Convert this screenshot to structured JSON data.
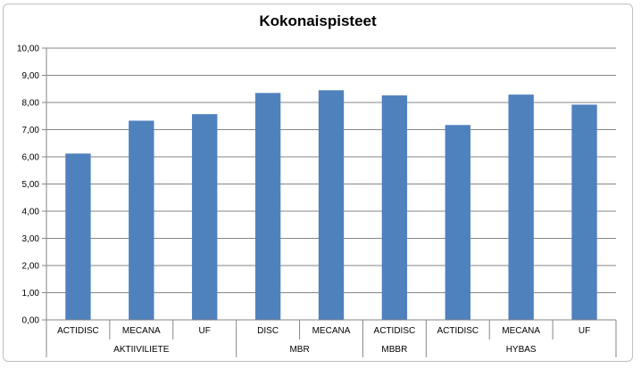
{
  "chart_data": {
    "type": "bar",
    "title": "Kokonaispisteet",
    "xlabel": "",
    "ylabel": "",
    "ylim": [
      0,
      10
    ],
    "yticks": [
      "0,00",
      "1,00",
      "2,00",
      "3,00",
      "4,00",
      "5,00",
      "6,00",
      "7,00",
      "8,00",
      "9,00",
      "10,00"
    ],
    "categories": [
      "ACTIDISC",
      "MECANA",
      "UF",
      "DISC",
      "MECANA",
      "ACTIDISC",
      "ACTIDISC",
      "MECANA",
      "UF"
    ],
    "groups": [
      {
        "label": "AKTIIVILIETE",
        "count": 3
      },
      {
        "label": "MBR",
        "count": 2
      },
      {
        "label": "MBBR",
        "count": 1
      },
      {
        "label": "HYBAS",
        "count": 3
      }
    ],
    "values": [
      6.12,
      7.33,
      7.57,
      8.35,
      8.45,
      8.26,
      7.17,
      8.29,
      7.92
    ],
    "bar_color": "#4f81bd",
    "grid": true
  }
}
